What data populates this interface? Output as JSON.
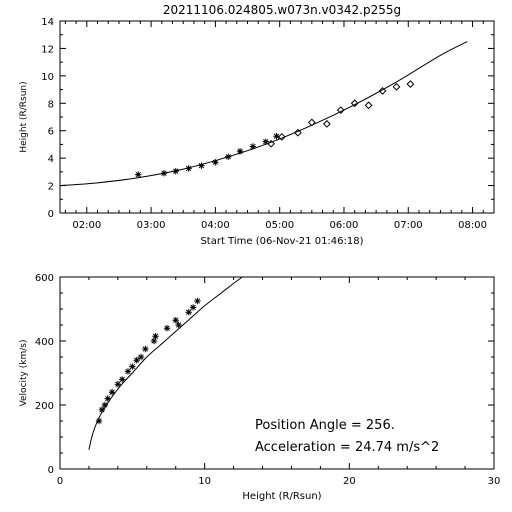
{
  "title": "20211106.024805.w073n.v0342.p255g",
  "chart_data": [
    {
      "type": "scatter",
      "xlabel": "Start Time (06-Nov-21 01:46:18)",
      "ylabel": "Height (R/Rsun)",
      "x_ticks": [
        "02:00",
        "03:00",
        "04:00",
        "05:00",
        "06:00",
        "07:00",
        "08:00"
      ],
      "x_tick_minutes": [
        120,
        180,
        240,
        300,
        360,
        420,
        480
      ],
      "xlim_minutes": [
        95,
        500
      ],
      "ylim": [
        0,
        14
      ],
      "y_ticks": [
        0,
        2,
        4,
        6,
        8,
        10,
        12,
        14
      ],
      "grid": false,
      "series": [
        {
          "marker": "asterisk",
          "points": [
            [
              168,
              2.8
            ],
            [
              192,
              2.9
            ],
            [
              203,
              3.05
            ],
            [
              215,
              3.25
            ],
            [
              227,
              3.45
            ],
            [
              240,
              3.7
            ],
            [
              252,
              4.1
            ],
            [
              263,
              4.5
            ],
            [
              275,
              4.85
            ],
            [
              287,
              5.2
            ],
            [
              297,
              5.6
            ]
          ]
        },
        {
          "marker": "diamond",
          "points": [
            [
              292,
              5.05
            ],
            [
              302,
              5.55
            ],
            [
              317,
              5.85
            ],
            [
              330,
              6.6
            ],
            [
              344,
              6.5
            ],
            [
              357,
              7.5
            ],
            [
              370,
              8.0
            ],
            [
              383,
              7.85
            ],
            [
              396,
              8.9
            ],
            [
              409,
              9.2
            ],
            [
              422,
              9.4
            ]
          ]
        },
        {
          "marker": "line",
          "points": [
            [
              95,
              2.0
            ],
            [
              130,
              2.2
            ],
            [
              170,
              2.6
            ],
            [
              210,
              3.2
            ],
            [
              250,
              4.05
            ],
            [
              290,
              5.1
            ],
            [
              330,
              6.4
            ],
            [
              370,
              7.9
            ],
            [
              410,
              9.6
            ],
            [
              450,
              11.5
            ],
            [
              475,
              12.5
            ]
          ]
        }
      ]
    },
    {
      "type": "scatter",
      "xlabel": "Height (R/Rsun)",
      "ylabel": "Velocity (km/s)",
      "xlim": [
        0,
        30
      ],
      "ylim": [
        0,
        600
      ],
      "x_ticks": [
        0,
        10,
        20,
        30
      ],
      "y_ticks": [
        0,
        200,
        400,
        600
      ],
      "grid": false,
      "annotations": [
        "Position Angle =   256.",
        "Acceleration =   24.74 m/s^2"
      ],
      "series": [
        {
          "marker": "asterisk",
          "points": [
            [
              2.7,
              150
            ],
            [
              2.9,
              185
            ],
            [
              3.1,
              200
            ],
            [
              3.3,
              220
            ],
            [
              3.6,
              240
            ],
            [
              4.0,
              265
            ],
            [
              4.3,
              280
            ],
            [
              4.7,
              305
            ],
            [
              5.0,
              320
            ],
            [
              5.3,
              340
            ],
            [
              5.6,
              350
            ],
            [
              5.9,
              375
            ],
            [
              6.5,
              400
            ],
            [
              6.6,
              415
            ],
            [
              7.4,
              440
            ],
            [
              8.0,
              465
            ],
            [
              8.2,
              450
            ],
            [
              8.9,
              490
            ],
            [
              9.2,
              505
            ],
            [
              9.5,
              525
            ]
          ]
        },
        {
          "marker": "line",
          "points": [
            [
              2.0,
              60
            ],
            [
              2.2,
              100
            ],
            [
              2.5,
              140
            ],
            [
              3.0,
              185
            ],
            [
              4.0,
              250
            ],
            [
              5.0,
              300
            ],
            [
              6.0,
              350
            ],
            [
              7.0,
              390
            ],
            [
              8.0,
              430
            ],
            [
              9.0,
              470
            ],
            [
              10.0,
              510
            ],
            [
              11.0,
              545
            ],
            [
              12.0,
              580
            ],
            [
              12.6,
              600
            ]
          ]
        }
      ]
    }
  ]
}
